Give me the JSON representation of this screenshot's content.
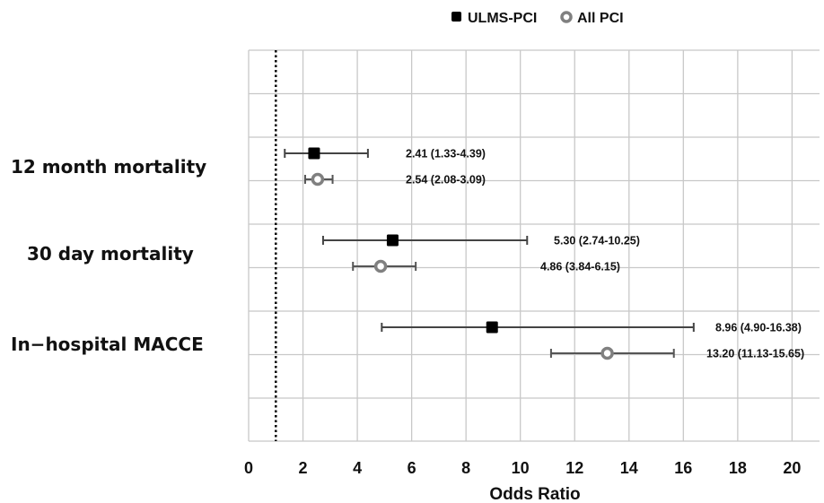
{
  "chart_data": {
    "type": "scatter",
    "subtype": "forest-plot",
    "xlabel": "Odds Ratio",
    "xlim": [
      0,
      21
    ],
    "xticks": [
      0,
      2,
      4,
      6,
      8,
      10,
      12,
      14,
      16,
      18,
      20
    ],
    "reference_line": 1,
    "grid": true,
    "legend_position": "top",
    "categories": [
      "12 month mortality",
      "30 day mortality",
      "In−hospital MACCE"
    ],
    "series": [
      {
        "name": "ULMS-PCI",
        "color": "#000000",
        "marker": "square",
        "points": [
          {
            "category": "12 month mortality",
            "or": 2.41,
            "ci": [
              1.33,
              4.39
            ],
            "label": "2.41 (1.33-4.39)"
          },
          {
            "category": "30 day mortality",
            "or": 5.3,
            "ci": [
              2.74,
              10.25
            ],
            "label": "5.30 (2.74-10.25)"
          },
          {
            "category": "In−hospital MACCE",
            "or": 8.96,
            "ci": [
              4.9,
              16.38
            ],
            "label": "8.96 (4.90-16.38)"
          }
        ]
      },
      {
        "name": "All PCI",
        "color": "#808080",
        "marker": "circle",
        "points": [
          {
            "category": "12 month mortality",
            "or": 2.54,
            "ci": [
              2.08,
              3.09
            ],
            "label": "2.54 (2.08-3.09)"
          },
          {
            "category": "30 day mortality",
            "or": 4.86,
            "ci": [
              3.84,
              6.15
            ],
            "label": "4.86 (3.84-6.15)"
          },
          {
            "category": "In−hospital MACCE",
            "or": 13.2,
            "ci": [
              11.13,
              15.65
            ],
            "label": "13.20 (11.13-15.65)"
          }
        ]
      }
    ]
  }
}
